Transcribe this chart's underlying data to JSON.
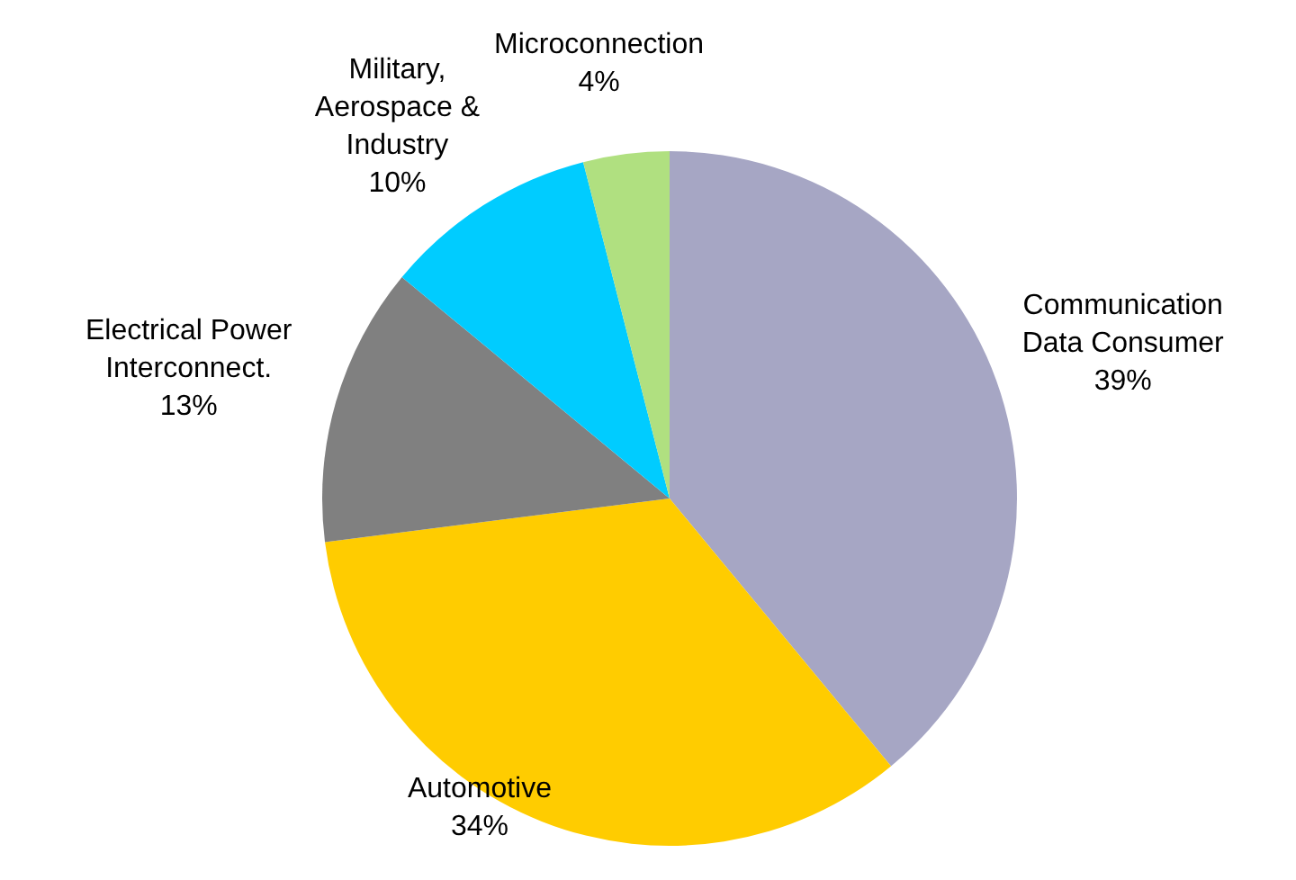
{
  "chart_data": {
    "type": "pie",
    "categories": [
      "Communication\nData Consumer",
      "Automotive",
      "Electrical Power\nInterconnect.",
      "Military,\nAerospace &\nIndustry",
      "Microconnection"
    ],
    "values": [
      39,
      34,
      13,
      10,
      4
    ],
    "value_labels": [
      "39%",
      "34%",
      "13%",
      "10%",
      "4%"
    ],
    "colors": [
      "#a6a6c4",
      "#ffcc00",
      "#808080",
      "#00ccff",
      "#b0e080"
    ],
    "legend": false
  }
}
